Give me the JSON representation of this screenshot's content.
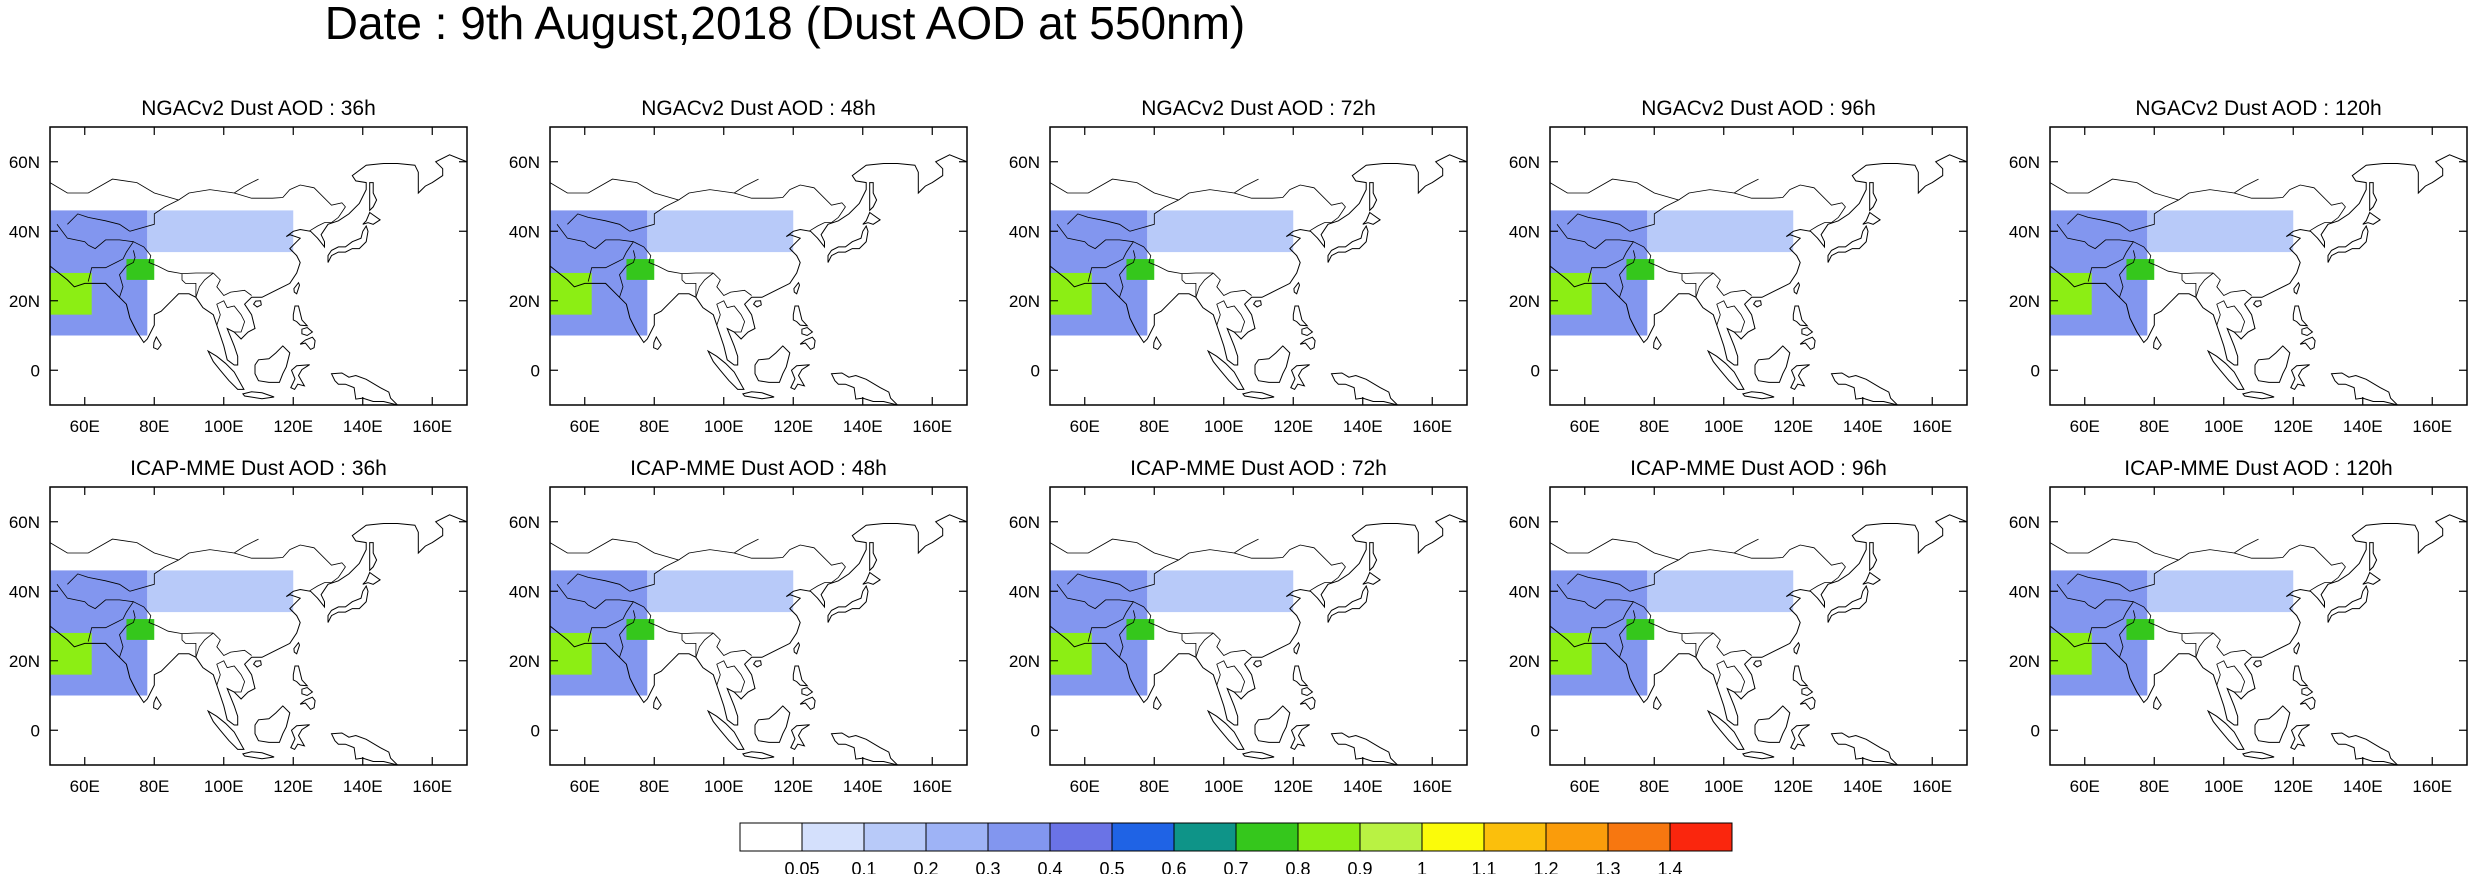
{
  "title": "Date : 9th August,2018 (Dust AOD at 550nm)",
  "panels": [
    {
      "title": "NGACv2 Dust AOD : 36h",
      "model": "NGACv2",
      "lead": "36h"
    },
    {
      "title": "NGACv2 Dust AOD : 48h",
      "model": "NGACv2",
      "lead": "48h"
    },
    {
      "title": "NGACv2 Dust AOD : 72h",
      "model": "NGACv2",
      "lead": "72h"
    },
    {
      "title": "NGACv2 Dust AOD : 96h",
      "model": "NGACv2",
      "lead": "96h"
    },
    {
      "title": "NGACv2 Dust AOD : 120h",
      "model": "NGACv2",
      "lead": "120h"
    },
    {
      "title": "ICAP-MME Dust AOD : 36h",
      "model": "ICAP-MME",
      "lead": "36h"
    },
    {
      "title": "ICAP-MME Dust AOD : 48h",
      "model": "ICAP-MME",
      "lead": "48h"
    },
    {
      "title": "ICAP-MME Dust AOD : 72h",
      "model": "ICAP-MME",
      "lead": "72h"
    },
    {
      "title": "ICAP-MME Dust AOD : 96h",
      "model": "ICAP-MME",
      "lead": "96h"
    },
    {
      "title": "ICAP-MME Dust AOD : 120h",
      "model": "ICAP-MME",
      "lead": "120h"
    }
  ],
  "map": {
    "lon_range": [
      50,
      170
    ],
    "lat_range": [
      -10,
      70
    ],
    "lon_ticks": [
      "60E",
      "80E",
      "100E",
      "120E",
      "140E",
      "160E"
    ],
    "lon_tick_values": [
      60,
      80,
      100,
      120,
      140,
      160
    ],
    "lat_ticks": [
      "0",
      "20N",
      "40N",
      "60N"
    ],
    "lat_tick_values": [
      0,
      20,
      40,
      60
    ]
  },
  "colorbar": {
    "labels": [
      "0.05",
      "0.1",
      "0.2",
      "0.3",
      "0.4",
      "0.5",
      "0.6",
      "0.7",
      "0.8",
      "0.9",
      "1",
      "1.1",
      "1.2",
      "1.3",
      "1.4"
    ],
    "colors": [
      "#ffffff",
      "#d4e0fc",
      "#b8caf9",
      "#9eb3f6",
      "#8296ef",
      "#6a73e6",
      "#1f63e5",
      "#0e9488",
      "#35c71c",
      "#8cee14",
      "#b9f243",
      "#fbfb0a",
      "#fbbf0c",
      "#fa9c0b",
      "#f77710",
      "#fa260d"
    ]
  },
  "dust_regions": [
    {
      "lon": [
        50,
        78
      ],
      "lat": [
        10,
        46
      ],
      "level": 0.35
    },
    {
      "lon": [
        50,
        62
      ],
      "lat": [
        16,
        28
      ],
      "level": 0.8
    },
    {
      "lon": [
        72,
        80
      ],
      "lat": [
        26,
        32
      ],
      "level": 0.75
    },
    {
      "lon": [
        78,
        120
      ],
      "lat": [
        34,
        46
      ],
      "level": 0.15
    }
  ]
}
